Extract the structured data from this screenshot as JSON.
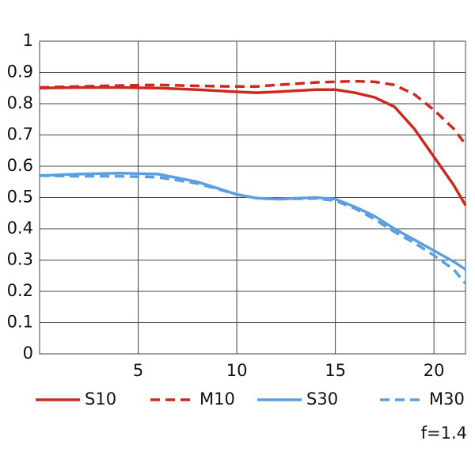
{
  "chart_data": {
    "type": "line",
    "x": [
      0,
      2,
      4,
      6,
      8,
      10,
      11,
      12,
      14,
      15,
      16,
      17,
      18,
      19,
      20,
      21,
      21.6
    ],
    "series": [
      {
        "name": "S10",
        "color": "#cc2a1e",
        "dash": false,
        "values": [
          0.85,
          0.852,
          0.852,
          0.85,
          0.845,
          0.838,
          0.835,
          0.838,
          0.845,
          0.845,
          0.835,
          0.82,
          0.79,
          0.72,
          0.63,
          0.54,
          0.475
        ]
      },
      {
        "name": "M10",
        "color": "#cc2a1e",
        "dash": true,
        "values": [
          0.852,
          0.855,
          0.858,
          0.86,
          0.857,
          0.855,
          0.855,
          0.86,
          0.868,
          0.87,
          0.872,
          0.87,
          0.86,
          0.83,
          0.78,
          0.72,
          0.67
        ]
      },
      {
        "name": "S30",
        "color": "#5a9fe0",
        "dash": false,
        "values": [
          0.57,
          0.575,
          0.578,
          0.575,
          0.55,
          0.51,
          0.498,
          0.495,
          0.5,
          0.495,
          0.47,
          0.44,
          0.4,
          0.365,
          0.33,
          0.295,
          0.27
        ]
      },
      {
        "name": "M30",
        "color": "#5a9fe0",
        "dash": true,
        "values": [
          0.57,
          0.568,
          0.568,
          0.565,
          0.545,
          0.51,
          0.498,
          0.495,
          0.497,
          0.49,
          0.465,
          0.43,
          0.39,
          0.355,
          0.315,
          0.27,
          0.225
        ]
      }
    ],
    "xlim": [
      0,
      21.6
    ],
    "xticks": [
      5,
      10,
      15,
      20
    ],
    "ylim": [
      0,
      1
    ],
    "yticks": [
      0,
      0.1,
      0.2,
      0.3,
      0.4,
      0.5,
      0.6,
      0.7,
      0.8,
      0.9,
      1
    ],
    "grid": true,
    "annotation": "f=1.4"
  }
}
